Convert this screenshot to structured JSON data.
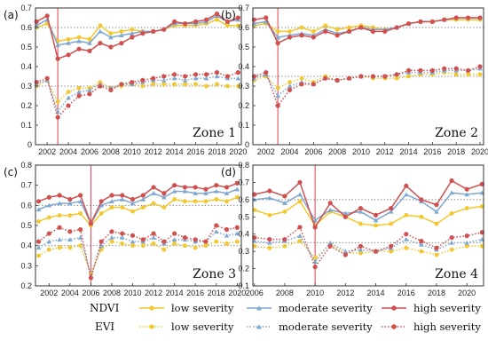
{
  "colors": {
    "low": "#f2c82e",
    "moderate": "#7ea7d1",
    "high": "#d05050",
    "vline": "#e0505a",
    "ref": "#777777",
    "frame": "#333333"
  },
  "legend": {
    "index_labels": [
      "NDVI",
      "EVI"
    ],
    "ndvi_items": [
      "low severity",
      "moderate severity",
      "high severity"
    ],
    "evi_items": [
      "low severity",
      "moderate severity",
      "high severity"
    ]
  },
  "chart_data": [
    {
      "type": "line",
      "panel": "(a)",
      "zone": "Zone 1",
      "x": [
        2001,
        2002,
        2003,
        2004,
        2005,
        2006,
        2007,
        2008,
        2009,
        2010,
        2011,
        2012,
        2013,
        2014,
        2015,
        2016,
        2017,
        2018,
        2019,
        2020
      ],
      "xticks": [
        2002,
        2004,
        2006,
        2008,
        2010,
        2012,
        2014,
        2016,
        2018,
        2020
      ],
      "xlim": [
        2000.9,
        2020.3
      ],
      "ylim": [
        0,
        0.7
      ],
      "yticks": [
        0,
        0.1,
        0.2,
        0.3,
        0.4,
        0.5,
        0.6,
        0.7
      ],
      "event_year": 2003,
      "ref_lines": [
        0.3,
        0.6
      ],
      "series": [
        {
          "index": "NDVI",
          "severity": "low",
          "values": [
            0.6,
            0.62,
            0.53,
            0.54,
            0.55,
            0.54,
            0.61,
            0.57,
            0.58,
            0.59,
            0.58,
            0.58,
            0.59,
            0.61,
            0.61,
            0.61,
            0.62,
            0.64,
            0.61,
            0.61
          ]
        },
        {
          "index": "NDVI",
          "severity": "moderate",
          "values": [
            0.61,
            0.64,
            0.51,
            0.52,
            0.53,
            0.52,
            0.58,
            0.55,
            0.56,
            0.57,
            0.58,
            0.58,
            0.59,
            0.62,
            0.62,
            0.62,
            0.63,
            0.66,
            0.63,
            0.64
          ]
        },
        {
          "index": "NDVI",
          "severity": "high",
          "values": [
            0.63,
            0.66,
            0.44,
            0.46,
            0.49,
            0.48,
            0.52,
            0.5,
            0.52,
            0.55,
            0.57,
            0.58,
            0.59,
            0.63,
            0.62,
            0.63,
            0.64,
            0.67,
            0.63,
            0.65
          ]
        },
        {
          "index": "EVI",
          "severity": "low",
          "values": [
            0.3,
            0.33,
            0.22,
            0.27,
            0.29,
            0.29,
            0.32,
            0.29,
            0.3,
            0.31,
            0.3,
            0.31,
            0.31,
            0.31,
            0.31,
            0.31,
            0.3,
            0.31,
            0.3,
            0.3
          ]
        },
        {
          "index": "EVI",
          "severity": "moderate",
          "values": [
            0.31,
            0.33,
            0.17,
            0.24,
            0.27,
            0.28,
            0.31,
            0.29,
            0.31,
            0.31,
            0.32,
            0.33,
            0.33,
            0.34,
            0.33,
            0.34,
            0.34,
            0.35,
            0.34,
            0.34
          ]
        },
        {
          "index": "EVI",
          "severity": "high",
          "values": [
            0.32,
            0.34,
            0.14,
            0.2,
            0.25,
            0.26,
            0.3,
            0.28,
            0.31,
            0.32,
            0.33,
            0.34,
            0.35,
            0.36,
            0.35,
            0.36,
            0.36,
            0.37,
            0.35,
            0.37
          ]
        }
      ]
    },
    {
      "type": "line",
      "panel": "(b)",
      "zone": "Zone 2",
      "x": [
        2001,
        2002,
        2003,
        2004,
        2005,
        2006,
        2007,
        2008,
        2009,
        2010,
        2011,
        2012,
        2013,
        2014,
        2015,
        2016,
        2017,
        2018,
        2019,
        2020
      ],
      "xticks": [
        2002,
        2004,
        2006,
        2008,
        2010,
        2012,
        2014,
        2016,
        2018,
        2020
      ],
      "xlim": [
        2000.9,
        2020.3
      ],
      "ylim": [
        0,
        0.7
      ],
      "yticks": [
        0,
        0.1,
        0.2,
        0.3,
        0.4,
        0.5,
        0.6,
        0.7
      ],
      "event_year": 2003,
      "ref_lines": [
        0.35,
        0.6
      ],
      "series": [
        {
          "index": "NDVI",
          "severity": "low",
          "values": [
            0.61,
            0.62,
            0.58,
            0.58,
            0.6,
            0.58,
            0.61,
            0.59,
            0.6,
            0.61,
            0.6,
            0.59,
            0.6,
            0.62,
            0.63,
            0.63,
            0.64,
            0.64,
            0.64,
            0.64
          ]
        },
        {
          "index": "NDVI",
          "severity": "moderate",
          "values": [
            0.62,
            0.63,
            0.55,
            0.56,
            0.57,
            0.56,
            0.59,
            0.57,
            0.58,
            0.6,
            0.59,
            0.59,
            0.6,
            0.62,
            0.63,
            0.63,
            0.64,
            0.65,
            0.65,
            0.65
          ]
        },
        {
          "index": "NDVI",
          "severity": "high",
          "values": [
            0.64,
            0.65,
            0.52,
            0.55,
            0.56,
            0.55,
            0.58,
            0.56,
            0.58,
            0.6,
            0.58,
            0.58,
            0.6,
            0.62,
            0.63,
            0.63,
            0.64,
            0.65,
            0.65,
            0.65
          ]
        },
        {
          "index": "EVI",
          "severity": "low",
          "values": [
            0.33,
            0.35,
            0.29,
            0.32,
            0.34,
            0.32,
            0.35,
            0.33,
            0.34,
            0.35,
            0.34,
            0.34,
            0.34,
            0.35,
            0.36,
            0.36,
            0.37,
            0.36,
            0.36,
            0.36
          ]
        },
        {
          "index": "EVI",
          "severity": "moderate",
          "values": [
            0.34,
            0.36,
            0.25,
            0.3,
            0.32,
            0.31,
            0.34,
            0.33,
            0.34,
            0.35,
            0.35,
            0.35,
            0.36,
            0.37,
            0.37,
            0.37,
            0.38,
            0.38,
            0.38,
            0.39
          ]
        },
        {
          "index": "EVI",
          "severity": "high",
          "values": [
            0.35,
            0.37,
            0.2,
            0.28,
            0.31,
            0.31,
            0.34,
            0.33,
            0.34,
            0.35,
            0.35,
            0.35,
            0.36,
            0.38,
            0.38,
            0.38,
            0.39,
            0.39,
            0.38,
            0.4
          ]
        }
      ]
    },
    {
      "type": "line",
      "panel": "(c)",
      "zone": "Zone 3",
      "x": [
        2001,
        2002,
        2003,
        2004,
        2005,
        2006,
        2007,
        2008,
        2009,
        2010,
        2011,
        2012,
        2013,
        2014,
        2015,
        2016,
        2017,
        2018,
        2019,
        2020
      ],
      "xticks": [
        2002,
        2004,
        2006,
        2008,
        2010,
        2012,
        2014,
        2016,
        2018,
        2020
      ],
      "xlim": [
        2000.7,
        2020.4
      ],
      "ylim": [
        0.2,
        0.8
      ],
      "yticks": [
        0.2,
        0.3,
        0.4,
        0.5,
        0.6,
        0.7,
        0.8
      ],
      "event_year": 2006,
      "ref_lines": [
        0.4,
        0.6
      ],
      "series": [
        {
          "index": "NDVI",
          "severity": "low",
          "values": [
            0.52,
            0.54,
            0.55,
            0.55,
            0.56,
            0.5,
            0.56,
            0.59,
            0.59,
            0.57,
            0.59,
            0.61,
            0.59,
            0.63,
            0.62,
            0.62,
            0.62,
            0.63,
            0.62,
            0.64
          ]
        },
        {
          "index": "NDVI",
          "severity": "moderate",
          "values": [
            0.58,
            0.6,
            0.61,
            0.61,
            0.62,
            0.51,
            0.6,
            0.62,
            0.63,
            0.61,
            0.63,
            0.66,
            0.64,
            0.67,
            0.67,
            0.66,
            0.66,
            0.67,
            0.66,
            0.68
          ]
        },
        {
          "index": "NDVI",
          "severity": "high",
          "values": [
            0.62,
            0.64,
            0.65,
            0.63,
            0.65,
            0.51,
            0.62,
            0.65,
            0.65,
            0.63,
            0.65,
            0.69,
            0.66,
            0.7,
            0.69,
            0.69,
            0.68,
            0.7,
            0.69,
            0.71
          ]
        },
        {
          "index": "EVI",
          "severity": "low",
          "values": [
            0.35,
            0.38,
            0.39,
            0.39,
            0.4,
            0.26,
            0.38,
            0.42,
            0.41,
            0.4,
            0.4,
            0.41,
            0.38,
            0.41,
            0.4,
            0.39,
            0.4,
            0.42,
            0.41,
            0.42
          ]
        },
        {
          "index": "EVI",
          "severity": "moderate",
          "values": [
            0.39,
            0.42,
            0.43,
            0.43,
            0.44,
            0.25,
            0.4,
            0.44,
            0.44,
            0.42,
            0.42,
            0.44,
            0.41,
            0.43,
            0.43,
            0.42,
            0.42,
            0.47,
            0.45,
            0.46
          ]
        },
        {
          "index": "EVI",
          "severity": "high",
          "values": [
            0.42,
            0.46,
            0.49,
            0.47,
            0.48,
            0.24,
            0.42,
            0.47,
            0.46,
            0.45,
            0.43,
            0.46,
            0.42,
            0.46,
            0.44,
            0.43,
            0.42,
            0.5,
            0.48,
            0.49
          ]
        }
      ]
    },
    {
      "type": "line",
      "panel": "(d)",
      "zone": "Zone 4",
      "x": [
        2006,
        2007,
        2008,
        2009,
        2010,
        2011,
        2012,
        2013,
        2014,
        2015,
        2016,
        2017,
        2018,
        2019,
        2020,
        2021
      ],
      "xticks": [
        2006,
        2008,
        2010,
        2012,
        2014,
        2016,
        2018,
        2020
      ],
      "xlim": [
        2005.9,
        2021.1
      ],
      "ylim": [
        0.1,
        0.8
      ],
      "yticks": [
        0.1,
        0.2,
        0.3,
        0.4,
        0.5,
        0.6,
        0.7,
        0.8
      ],
      "event_year": 2010,
      "ref_lines": [
        0.35,
        0.6
      ],
      "series": [
        {
          "index": "NDVI",
          "severity": "low",
          "values": [
            0.54,
            0.51,
            0.53,
            0.59,
            0.45,
            0.53,
            0.5,
            0.46,
            0.45,
            0.46,
            0.51,
            0.5,
            0.46,
            0.52,
            0.55,
            0.56
          ]
        },
        {
          "index": "NDVI",
          "severity": "moderate",
          "values": [
            0.6,
            0.61,
            0.58,
            0.63,
            0.48,
            0.54,
            0.52,
            0.53,
            0.48,
            0.53,
            0.63,
            0.59,
            0.53,
            0.64,
            0.63,
            0.64
          ]
        },
        {
          "index": "NDVI",
          "severity": "high",
          "values": [
            0.63,
            0.65,
            0.62,
            0.7,
            0.44,
            0.58,
            0.5,
            0.55,
            0.51,
            0.55,
            0.68,
            0.6,
            0.57,
            0.71,
            0.66,
            0.69
          ]
        },
        {
          "index": "EVI",
          "severity": "low",
          "values": [
            0.33,
            0.32,
            0.33,
            0.36,
            0.26,
            0.34,
            0.29,
            0.29,
            0.3,
            0.3,
            0.32,
            0.3,
            0.28,
            0.31,
            0.33,
            0.33
          ]
        },
        {
          "index": "EVI",
          "severity": "moderate",
          "values": [
            0.36,
            0.35,
            0.36,
            0.39,
            0.24,
            0.35,
            0.3,
            0.31,
            0.3,
            0.32,
            0.37,
            0.34,
            0.31,
            0.35,
            0.35,
            0.37
          ]
        },
        {
          "index": "EVI",
          "severity": "high",
          "values": [
            0.38,
            0.37,
            0.37,
            0.44,
            0.21,
            0.33,
            0.28,
            0.33,
            0.3,
            0.33,
            0.4,
            0.36,
            0.32,
            0.38,
            0.39,
            0.41
          ]
        }
      ]
    }
  ]
}
